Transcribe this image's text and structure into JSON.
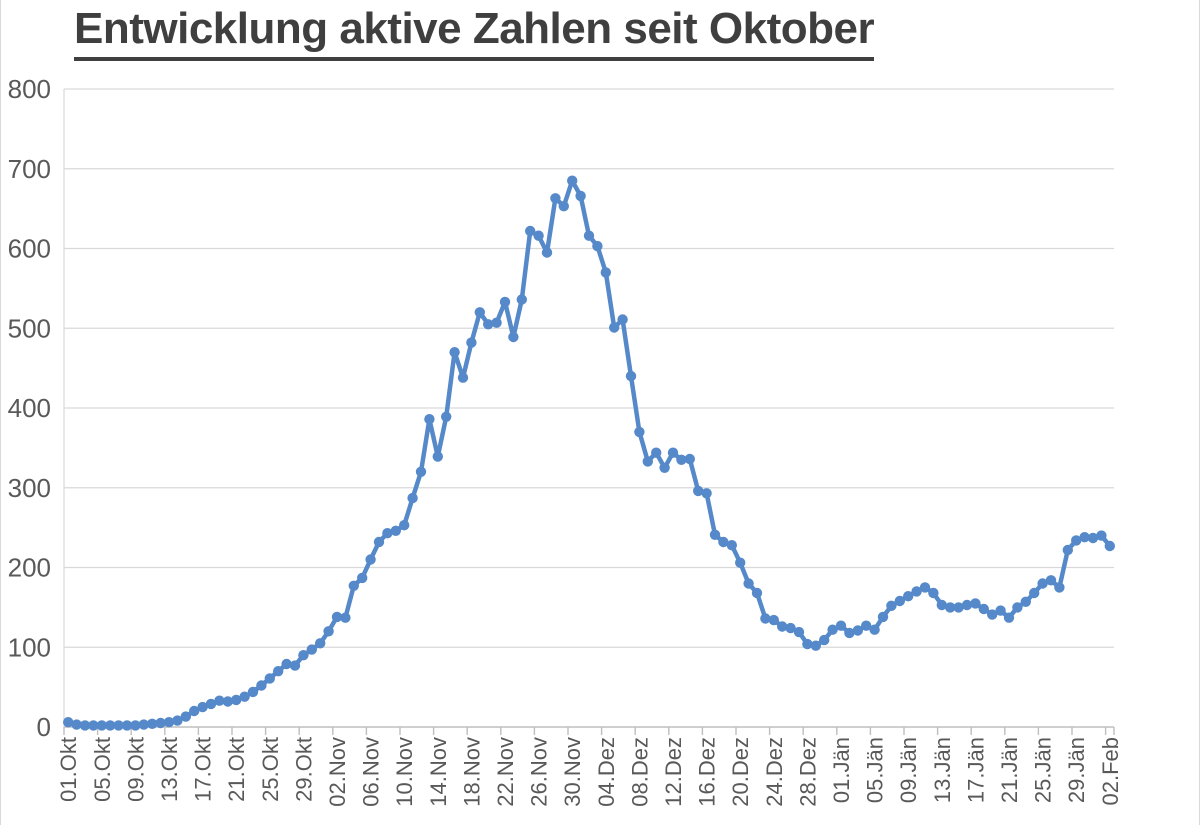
{
  "title": "Entwicklung aktive Zahlen seit Oktober",
  "colors": {
    "line": "#5589C9",
    "marker": "#5589C9",
    "grid": "#D9D9D9",
    "axis": "#BFBFBF",
    "axis_label_text": "#595959",
    "title_text": "#3F3F3F",
    "background": "#FFFFFF"
  },
  "chart_data": {
    "type": "line",
    "title": "Entwicklung aktive Zahlen seit Oktober",
    "x_frequency": "daily",
    "x_start": "01.Okt",
    "x_end": "02.Feb",
    "x_tick_every_n_points": 4,
    "x_tick_labels": [
      "01.Okt",
      "05.Okt",
      "09.Okt",
      "13.Okt",
      "17.Okt",
      "21.Okt",
      "25.Okt",
      "29.Okt",
      "02.Nov",
      "06.Nov",
      "10.Nov",
      "14.Nov",
      "18.Nov",
      "22.Nov",
      "26.Nov",
      "30.Nov",
      "04.Dez",
      "08.Dez",
      "12.Dez",
      "16.Dez",
      "20.Dez",
      "24.Dez",
      "28.Dez",
      "01.Jän",
      "05.Jän",
      "09.Jän",
      "13.Jän",
      "17.Jän",
      "21.Jän",
      "25.Jän",
      "29.Jän",
      "02.Feb"
    ],
    "ylim": [
      0,
      800
    ],
    "y_ticks": [
      0,
      100,
      200,
      300,
      400,
      500,
      600,
      700,
      800
    ],
    "grid": "horizontal",
    "legend": "none",
    "marker_style": "circle",
    "values": [
      6,
      3,
      2,
      2,
      2,
      2,
      2,
      2,
      2,
      3,
      4,
      5,
      6,
      8,
      13,
      20,
      25,
      29,
      33,
      32,
      34,
      38,
      44,
      52,
      61,
      70,
      79,
      77,
      90,
      97,
      105,
      120,
      138,
      137,
      177,
      187,
      210,
      232,
      243,
      246,
      253,
      287,
      320,
      386,
      339,
      389,
      470,
      438,
      482,
      520,
      505,
      507,
      533,
      489,
      536,
      622,
      616,
      595,
      663,
      653,
      685,
      666,
      616,
      603,
      570,
      501,
      511,
      440,
      370,
      333,
      344,
      325,
      344,
      335,
      336,
      296,
      293,
      241,
      232,
      228,
      206,
      180,
      168,
      136,
      134,
      126,
      124,
      119,
      104,
      102,
      109,
      122,
      127,
      118,
      121,
      127,
      122,
      138,
      152,
      158,
      164,
      170,
      175,
      168,
      153,
      150,
      150,
      153,
      155,
      148,
      141,
      146,
      137,
      150,
      157,
      168,
      180,
      184,
      175,
      222,
      234,
      238,
      237,
      240,
      227
    ]
  }
}
